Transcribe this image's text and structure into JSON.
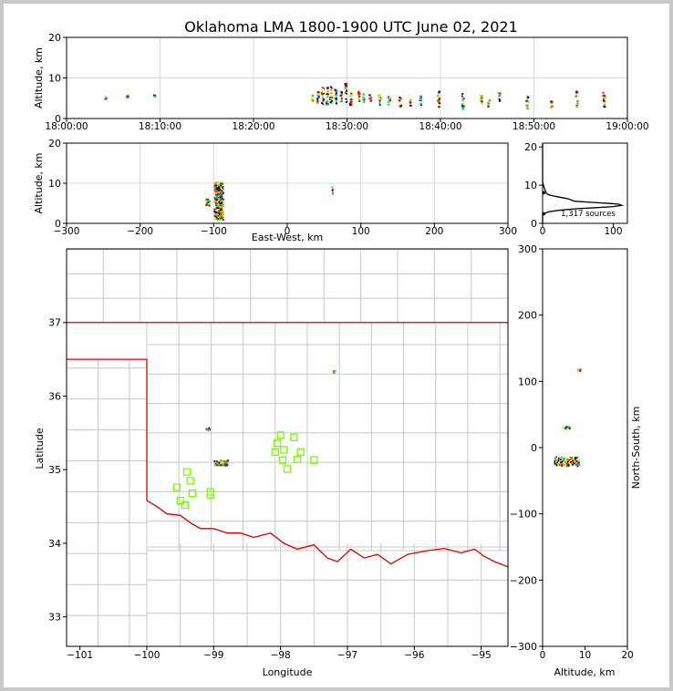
{
  "title": "Oklahoma LMA 1800-1900 UTC June 02, 2021",
  "colors": {
    "axis": "#000000",
    "grid": "#d9d9d9",
    "state_border": "#e00000",
    "county_lines": "#c8c8c8",
    "stations": "#7cfc00",
    "source_palette": [
      "#0000aa",
      "#00aaff",
      "#00dd88",
      "#33cc00",
      "#99ff00",
      "#ffee00",
      "#ff8800",
      "#ff0000",
      "#aa0000",
      "#000000"
    ]
  },
  "chart_data": [
    {
      "id": "time-altitude",
      "type": "scatter",
      "ylabel": "Altitude, km",
      "ylim": [
        0,
        20
      ],
      "yticks": [
        "0",
        "10",
        "20"
      ],
      "xticks": [
        "18:00:00",
        "18:10:00",
        "18:20:00",
        "18:30:00",
        "18:40:00",
        "18:50:00",
        "19:00:00"
      ],
      "xlim_minutes": [
        0,
        60
      ],
      "grid": true,
      "clusters": [
        {
          "t": 4.2,
          "alt_min": 5,
          "alt_max": 5.5
        },
        {
          "t": 6.5,
          "alt_min": 5,
          "alt_max": 6
        },
        {
          "t": 9.4,
          "alt_min": 5.5,
          "alt_max": 6
        },
        {
          "t": 26.3,
          "alt_min": 4,
          "alt_max": 6
        },
        {
          "t": 26.9,
          "alt_min": 4,
          "alt_max": 7
        },
        {
          "t": 27.4,
          "alt_min": 3.5,
          "alt_max": 8
        },
        {
          "t": 27.9,
          "alt_min": 3.5,
          "alt_max": 8
        },
        {
          "t": 28.3,
          "alt_min": 3.5,
          "alt_max": 8
        },
        {
          "t": 28.8,
          "alt_min": 3.5,
          "alt_max": 7.5
        },
        {
          "t": 29.4,
          "alt_min": 4,
          "alt_max": 7
        },
        {
          "t": 29.9,
          "alt_min": 4,
          "alt_max": 9
        },
        {
          "t": 30.4,
          "alt_min": 3.5,
          "alt_max": 7
        },
        {
          "t": 31.3,
          "alt_min": 4,
          "alt_max": 7
        },
        {
          "t": 31.8,
          "alt_min": 4,
          "alt_max": 6.5
        },
        {
          "t": 32.5,
          "alt_min": 4,
          "alt_max": 6
        },
        {
          "t": 33.5,
          "alt_min": 3.5,
          "alt_max": 6
        },
        {
          "t": 34.5,
          "alt_min": 3.5,
          "alt_max": 6
        },
        {
          "t": 35.7,
          "alt_min": 3,
          "alt_max": 5.5
        },
        {
          "t": 36.8,
          "alt_min": 3,
          "alt_max": 5
        },
        {
          "t": 37.9,
          "alt_min": 3.5,
          "alt_max": 6
        },
        {
          "t": 39.8,
          "alt_min": 3,
          "alt_max": 7
        },
        {
          "t": 42.4,
          "alt_min": 2.5,
          "alt_max": 6.5
        },
        {
          "t": 44.4,
          "alt_min": 3.5,
          "alt_max": 6
        },
        {
          "t": 45.2,
          "alt_min": 3,
          "alt_max": 5
        },
        {
          "t": 46.3,
          "alt_min": 4.5,
          "alt_max": 6.5
        },
        {
          "t": 49.3,
          "alt_min": 2.5,
          "alt_max": 6
        },
        {
          "t": 51.9,
          "alt_min": 2.5,
          "alt_max": 4.5
        },
        {
          "t": 54.6,
          "alt_min": 3,
          "alt_max": 7
        },
        {
          "t": 57.5,
          "alt_min": 3,
          "alt_max": 7
        }
      ]
    },
    {
      "id": "eastwest-altitude",
      "type": "scatter",
      "xlabel": "East-West, km",
      "ylabel": "Altitude, km",
      "xlim": [
        -300,
        300
      ],
      "ylim": [
        0,
        20
      ],
      "xticks": [
        "−300",
        "−200",
        "−100",
        "0",
        "100",
        "200",
        "300"
      ],
      "yticks": [
        "0",
        "10",
        "20"
      ],
      "grid": true,
      "clusters": [
        {
          "x": -109,
          "alt_min": 4.5,
          "alt_max": 6.5,
          "w": 5
        },
        {
          "x": -94,
          "alt_min": 1,
          "alt_max": 10.5,
          "w": 12
        },
        {
          "x": 60,
          "alt_min": 7.5,
          "alt_max": 9.5,
          "w": 2
        }
      ]
    },
    {
      "id": "altitude-histogram",
      "type": "line",
      "xlim": [
        0,
        120
      ],
      "ylim": [
        0,
        21
      ],
      "xticks": [
        "0",
        "100"
      ],
      "yticks": [
        "0",
        "10",
        "20"
      ],
      "annotation": "1,317 sources",
      "points": [
        [
          0,
          21
        ],
        [
          0,
          11
        ],
        [
          1,
          10
        ],
        [
          3,
          9
        ],
        [
          5,
          8
        ],
        [
          8,
          7.5
        ],
        [
          20,
          7
        ],
        [
          35,
          6.5
        ],
        [
          45,
          5.8
        ],
        [
          70,
          5.5
        ],
        [
          95,
          5.2
        ],
        [
          108,
          5
        ],
        [
          112,
          4.7
        ],
        [
          100,
          4.4
        ],
        [
          75,
          4.1
        ],
        [
          45,
          3.8
        ],
        [
          22,
          3.4
        ],
        [
          8,
          3.0
        ],
        [
          2,
          2.5
        ],
        [
          0,
          2
        ],
        [
          0,
          0
        ]
      ],
      "markers_at_y": [
        2.5,
        8
      ]
    },
    {
      "id": "plan-view-map",
      "type": "scatter",
      "xlabel": "Longitude",
      "ylabel": "Latitude",
      "xlim": [
        -101.2,
        -94.6
      ],
      "ylim": [
        32.6,
        38.0
      ],
      "xticks": [
        "−101",
        "−100",
        "−99",
        "−98",
        "−97",
        "−96",
        "−95"
      ],
      "yticks": [
        "33",
        "34",
        "35",
        "36",
        "37"
      ],
      "source_clusters": [
        {
          "lon": -98.9,
          "lat": 35.1,
          "w": 0.22,
          "h": 0.08
        },
        {
          "lon": -99.1,
          "lat": 35.56,
          "w": 0.06,
          "h": 0.04
        },
        {
          "lon": -97.2,
          "lat": 36.34,
          "w": 0.04,
          "h": 0.03
        }
      ],
      "stations": [
        [
          -98.0,
          35.47
        ],
        [
          -97.8,
          35.44
        ],
        [
          -98.05,
          35.36
        ],
        [
          -97.95,
          35.27
        ],
        [
          -98.08,
          35.24
        ],
        [
          -97.7,
          35.24
        ],
        [
          -97.75,
          35.14
        ],
        [
          -97.5,
          35.13
        ],
        [
          -97.97,
          35.13
        ],
        [
          -97.9,
          35.01
        ],
        [
          -99.4,
          34.97
        ],
        [
          -99.35,
          34.85
        ],
        [
          -99.55,
          34.76
        ],
        [
          -99.32,
          34.68
        ],
        [
          -99.05,
          34.7
        ],
        [
          -99.05,
          34.66
        ],
        [
          -99.5,
          34.58
        ],
        [
          -99.43,
          34.52
        ]
      ]
    },
    {
      "id": "altitude-northsouth",
      "type": "scatter",
      "xlabel": "Altitude, km",
      "ylabel": "North-South, km",
      "xlim": [
        0,
        20
      ],
      "ylim": [
        -300,
        300
      ],
      "xticks": [
        "0",
        "10",
        "20"
      ],
      "yticks": [
        "−300",
        "−200",
        "−100",
        "0",
        "100",
        "200",
        "300"
      ],
      "clusters": [
        {
          "alt_min": 2.5,
          "alt_max": 8.5,
          "y": -20,
          "h": 14
        },
        {
          "alt_min": 4.5,
          "alt_max": 6.5,
          "y": 31,
          "h": 4
        },
        {
          "alt_min": 8,
          "alt_max": 9,
          "y": 118,
          "h": 3
        }
      ]
    }
  ]
}
